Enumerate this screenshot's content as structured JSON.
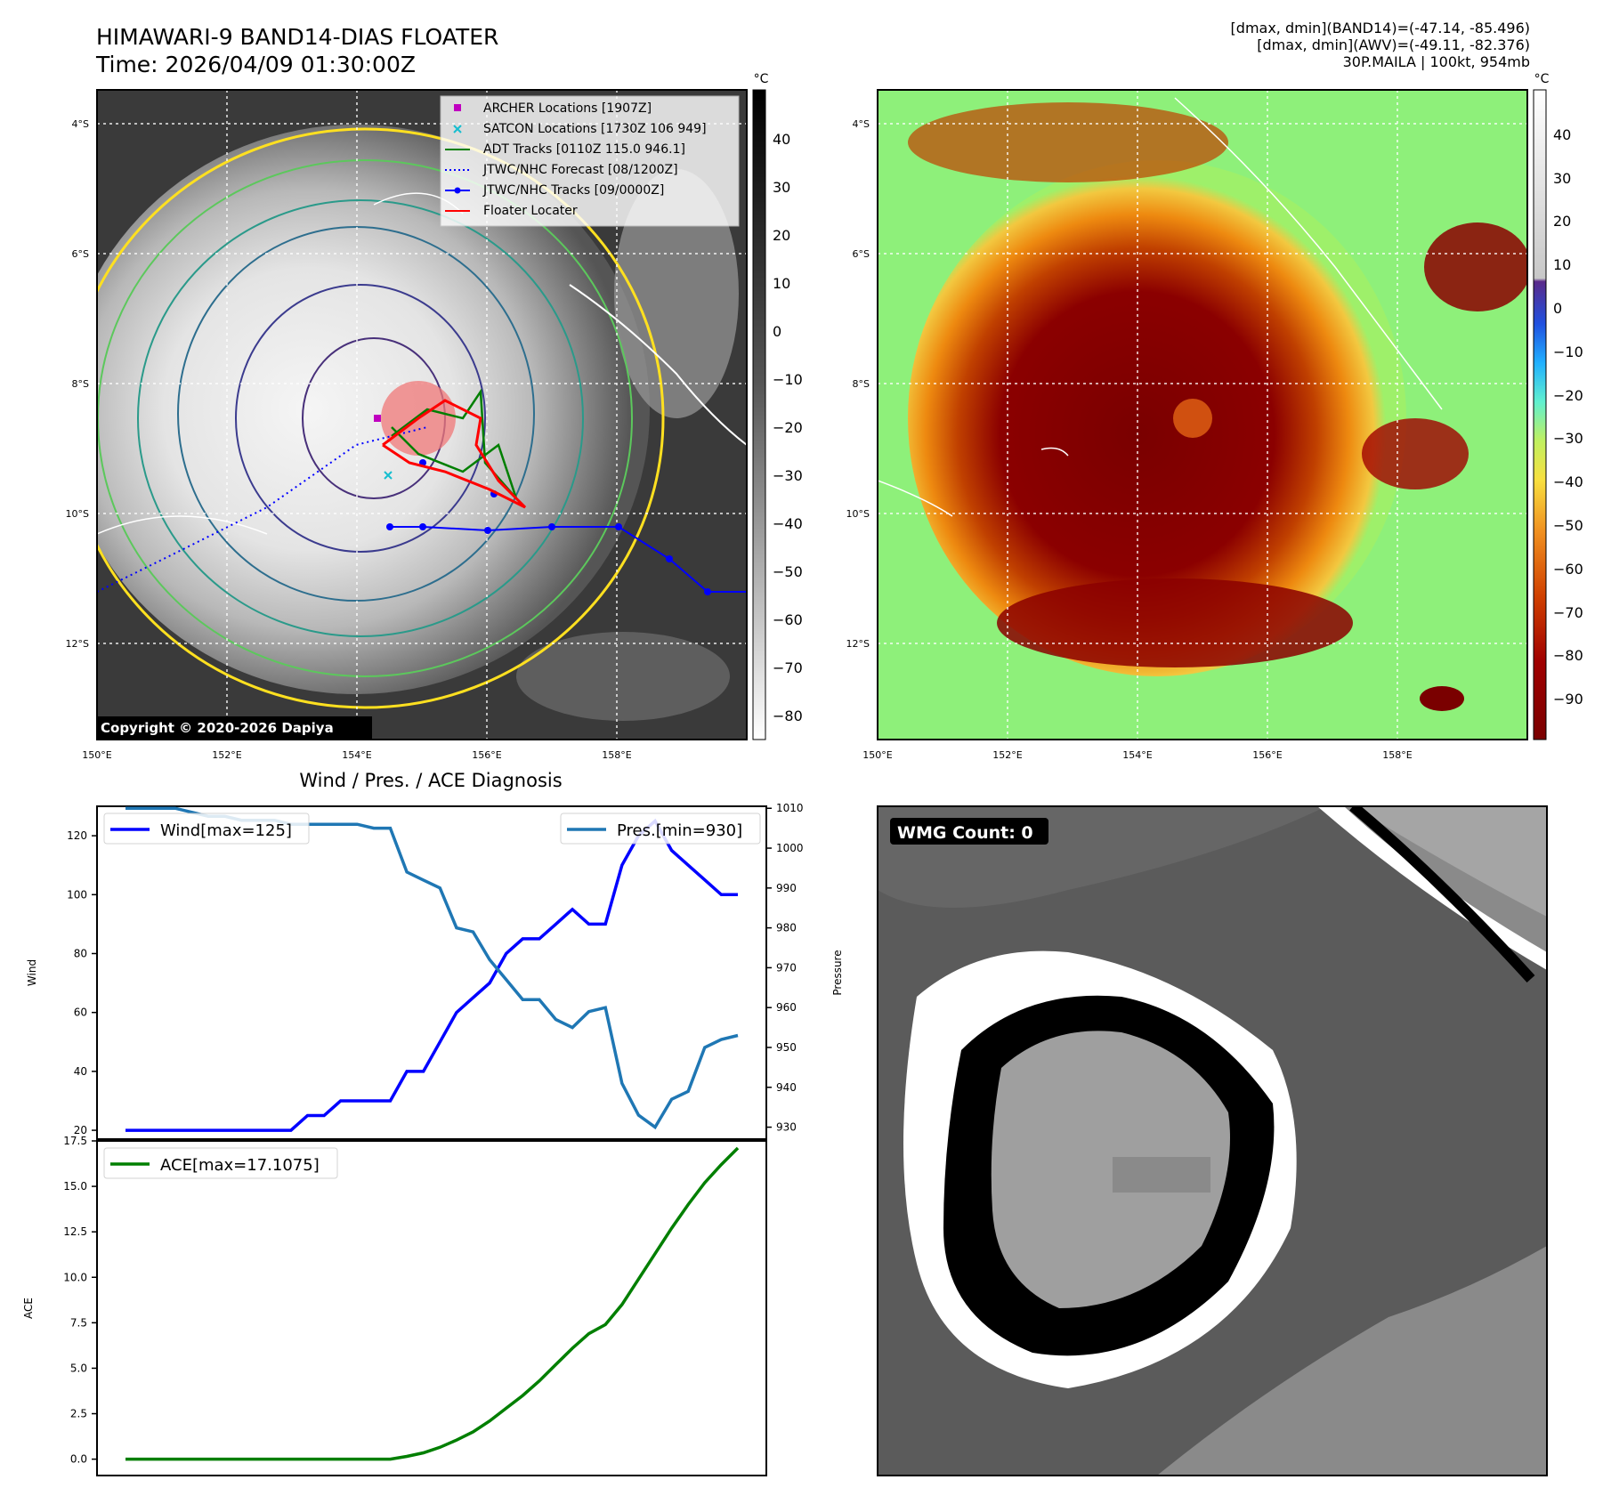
{
  "header": {
    "title_line1": "HIMAWARI-9 BAND14-DIAS FLOATER",
    "title_line2": "Time: 2026/04/09 01:30:00Z",
    "stats_line1": "[dmax, dmin](BAND14)=(-47.14, -85.496)",
    "stats_line2": "[dmax, dmin](AWV)=(-49.11, -82.376)",
    "stats_line3": "30P.MAILA | 100kt, 954mb"
  },
  "ir_panel": {
    "lat_labels": [
      "4°S",
      "6°S",
      "8°S",
      "10°S",
      "12°S"
    ],
    "lon_labels": [
      "150°E",
      "152°E",
      "154°E",
      "156°E",
      "158°E"
    ],
    "copyright": "Copyright © 2020-2026 Dapiya",
    "colorbar_unit": "°C",
    "colorbar_ticks": [
      "40",
      "30",
      "20",
      "10",
      "0",
      "−10",
      "−20",
      "−30",
      "−40",
      "−50",
      "−60",
      "−70",
      "−80"
    ],
    "legend": [
      {
        "label": "ARCHER Locations [1907Z]",
        "color": "#c000c0",
        "marker": "square"
      },
      {
        "label": "SATCON Locations [1730Z 106 949]",
        "color": "#17becf",
        "marker": "x"
      },
      {
        "label": "ADT Tracks [0110Z 115.0 946.1]",
        "color": "#007f00",
        "marker": "line"
      },
      {
        "label": "JTWC/NHC Forecast [08/1200Z]",
        "color": "#0000ff",
        "marker": "dotted"
      },
      {
        "label": "JTWC/NHC Tracks [09/0000Z]",
        "color": "#0000ff",
        "marker": "line-dot"
      },
      {
        "label": "Floater Locater",
        "color": "#ff0000",
        "marker": "line"
      }
    ]
  },
  "awv_panel": {
    "lat_labels": [
      "4°S",
      "6°S",
      "8°S",
      "10°S",
      "12°S"
    ],
    "lon_labels": [
      "150°E",
      "152°E",
      "154°E",
      "156°E",
      "158°E"
    ],
    "colorbar_unit": "°C",
    "colorbar_ticks": [
      "40",
      "30",
      "20",
      "10",
      "0",
      "−10",
      "−20",
      "−30",
      "−40",
      "−50",
      "−60",
      "−70",
      "−80",
      "−90"
    ]
  },
  "wmg_panel": {
    "label": "WMG Count: 0"
  },
  "chart_data": [
    {
      "type": "line",
      "title": "Wind / Pres. / ACE Diagnosis",
      "ylabel": "Wind",
      "y2label": "Pressure",
      "ylim": [
        17,
        130
      ],
      "y2lim": [
        927,
        1010.5
      ],
      "yticks": [
        20,
        40,
        60,
        80,
        100,
        120
      ],
      "y2ticks": [
        930,
        940,
        950,
        960,
        970,
        980,
        990,
        1000,
        1010
      ],
      "series": [
        {
          "name": "Wind[max=125]",
          "axis": "left",
          "color": "#0000ff",
          "values": [
            20,
            20,
            20,
            20,
            20,
            20,
            20,
            20,
            20,
            20,
            20,
            25,
            25,
            30,
            30,
            30,
            30,
            40,
            40,
            50,
            60,
            65,
            70,
            80,
            85,
            85,
            90,
            95,
            90,
            90,
            110,
            120,
            125,
            115,
            110,
            105,
            100,
            100
          ]
        },
        {
          "name": "Pres.[min=930]",
          "axis": "right",
          "color": "#1f77b4",
          "values": [
            1010,
            1010,
            1010,
            1010,
            1009,
            1008,
            1008,
            1007,
            1007,
            1007,
            1006,
            1006,
            1006,
            1006,
            1006,
            1005,
            1005,
            994,
            992,
            990,
            980,
            979,
            972,
            967,
            962,
            962,
            957,
            955,
            959,
            960,
            941,
            933,
            930,
            937,
            939,
            950,
            952,
            953
          ]
        }
      ]
    },
    {
      "type": "line",
      "ylabel": "ACE",
      "ylim": [
        -0.9,
        17.5
      ],
      "yticks": [
        0.0,
        2.5,
        5.0,
        7.5,
        10.0,
        12.5,
        15.0,
        17.5
      ],
      "ytick_labels": [
        "0.0",
        "2.5",
        "5.0",
        "7.5",
        "10.0",
        "12.5",
        "15.0",
        "17.5"
      ],
      "series": [
        {
          "name": "ACE[max=17.1075]",
          "color": "#007f00",
          "values": [
            0,
            0,
            0,
            0,
            0,
            0,
            0,
            0,
            0,
            0,
            0,
            0,
            0,
            0,
            0,
            0,
            0,
            0.15,
            0.35,
            0.65,
            1.05,
            1.5,
            2.1,
            2.8,
            3.5,
            4.3,
            5.2,
            6.1,
            6.9,
            7.4,
            8.5,
            9.9,
            11.3,
            12.7,
            14.0,
            15.2,
            16.2,
            17.1075
          ]
        }
      ]
    }
  ]
}
